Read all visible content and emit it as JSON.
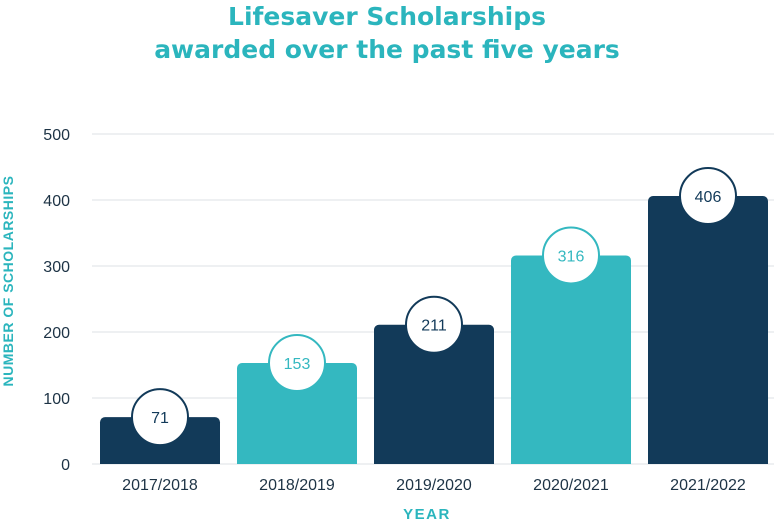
{
  "colors": {
    "dark": "#123a59",
    "teal": "#34b8c0",
    "title": "#2bb5bd",
    "grid": "#e4e7ea",
    "tick_text": "#1d3345"
  },
  "chart_data": {
    "type": "bar",
    "title_line1": "Lifesaver Scholarships",
    "title_line2": "awarded over the past five years",
    "xlabel": "YEAR",
    "ylabel": "NUMBER OF SCHOLARSHIPS",
    "categories": [
      "2017/2018",
      "2018/2019",
      "2019/2020",
      "2020/2021",
      "2021/2022"
    ],
    "values": [
      71,
      153,
      211,
      316,
      406
    ],
    "value_labels": [
      "71",
      "153",
      "211",
      "316",
      "406"
    ],
    "bar_colors": [
      "dark",
      "teal",
      "dark",
      "teal",
      "dark"
    ],
    "ylim": [
      0,
      500
    ],
    "yticks": [
      0,
      100,
      200,
      300,
      400,
      500
    ],
    "ytick_labels": [
      "0",
      "100",
      "200",
      "300",
      "400",
      "500"
    ],
    "grid": true,
    "legend": "none"
  }
}
